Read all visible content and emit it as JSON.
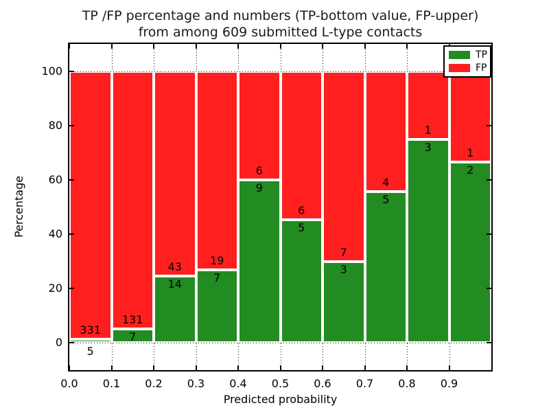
{
  "figure": {
    "title_line1": "TP /FP percentage and numbers (TP-bottom value, FP-upper)",
    "title_line2": "from among 609 submitted L-type contacts",
    "xlabel": "Predicted probability",
    "ylabel": "Percentage"
  },
  "legend": {
    "position": "upper right",
    "entries": [
      {
        "label": "TP",
        "color": "#228b22"
      },
      {
        "label": "FP",
        "color": "#ff1f1f"
      }
    ]
  },
  "chart_data": {
    "type": "bar",
    "stacked": true,
    "unit": "percent",
    "title": "TP /FP percentage and numbers (TP-bottom value, FP-upper) from among 609 submitted L-type contacts",
    "xlabel": "Predicted probability",
    "ylabel": "Percentage",
    "xlim": [
      0.0,
      1.0
    ],
    "ylim": [
      -10,
      110
    ],
    "xticks": [
      "0.0",
      "0.1",
      "0.2",
      "0.3",
      "0.4",
      "0.5",
      "0.6",
      "0.7",
      "0.8",
      "0.9"
    ],
    "yticks": [
      0,
      20,
      40,
      60,
      80,
      100
    ],
    "grid": "dotted",
    "legend_position": "upper right",
    "series": [
      {
        "name": "TP",
        "color": "#228b22",
        "counts": [
          5,
          7,
          14,
          7,
          9,
          5,
          3,
          5,
          3,
          2
        ]
      },
      {
        "name": "FP",
        "color": "#ff1f1f",
        "counts": [
          331,
          131,
          43,
          19,
          6,
          6,
          7,
          4,
          1,
          1
        ]
      }
    ],
    "bins": [
      {
        "range": [
          0.0,
          0.1
        ],
        "tp": 5,
        "fp": 331,
        "tp_pct": 1.49
      },
      {
        "range": [
          0.1,
          0.2
        ],
        "tp": 7,
        "fp": 131,
        "tp_pct": 5.07
      },
      {
        "range": [
          0.2,
          0.3
        ],
        "tp": 14,
        "fp": 43,
        "tp_pct": 24.56
      },
      {
        "range": [
          0.3,
          0.4
        ],
        "tp": 7,
        "fp": 19,
        "tp_pct": 26.92
      },
      {
        "range": [
          0.4,
          0.5
        ],
        "tp": 9,
        "fp": 6,
        "tp_pct": 60.0
      },
      {
        "range": [
          0.5,
          0.6
        ],
        "tp": 5,
        "fp": 6,
        "tp_pct": 45.45
      },
      {
        "range": [
          0.6,
          0.7
        ],
        "tp": 3,
        "fp": 7,
        "tp_pct": 30.0
      },
      {
        "range": [
          0.7,
          0.8
        ],
        "tp": 5,
        "fp": 4,
        "tp_pct": 55.56
      },
      {
        "range": [
          0.8,
          0.9
        ],
        "tp": 3,
        "fp": 1,
        "tp_pct": 75.0
      },
      {
        "range": [
          0.9,
          1.0
        ],
        "tp": 2,
        "fp": 1,
        "tp_pct": 66.67
      }
    ]
  }
}
